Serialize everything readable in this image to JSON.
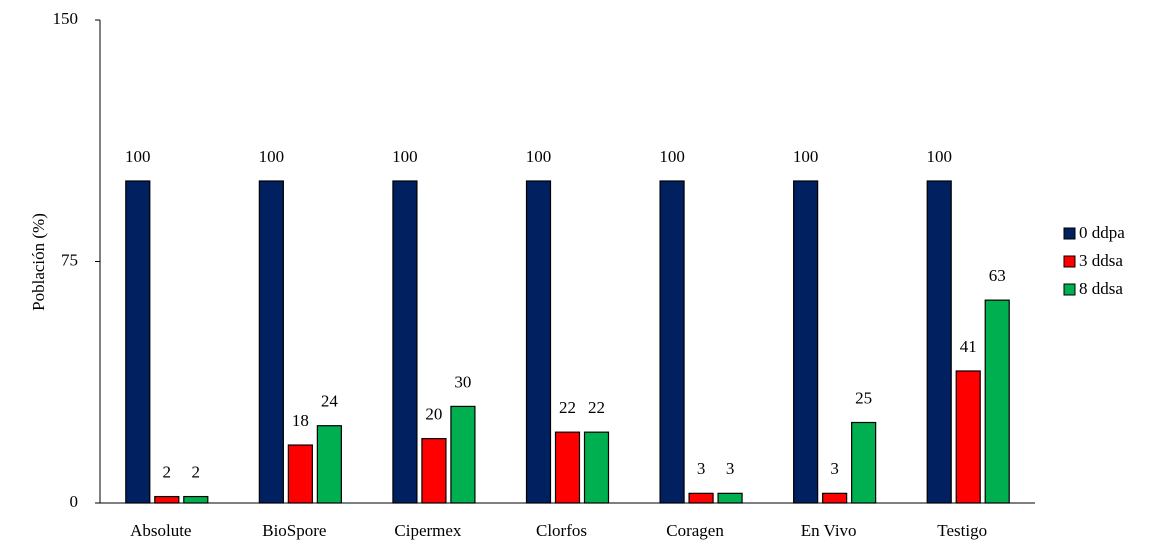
{
  "chart_data": {
    "type": "bar",
    "y_label": "Población (%)",
    "categories": [
      "Absolute",
      "BioSpore",
      "Cipermex",
      "Clorfos",
      "Coragen",
      "En Vivo",
      "Testigo"
    ],
    "series": [
      {
        "name": "0 ddpa",
        "color": "#002060",
        "values": [
          100,
          100,
          100,
          100,
          100,
          100,
          100
        ]
      },
      {
        "name": "3 ddsa",
        "color": "#ff0000",
        "values": [
          2,
          18,
          20,
          22,
          3,
          3,
          41
        ]
      },
      {
        "name": "8 ddsa",
        "color": "#00b050",
        "values": [
          2,
          24,
          30,
          22,
          3,
          25,
          63
        ]
      }
    ],
    "ylim": [
      0,
      150
    ],
    "yticks": [
      0,
      75,
      150
    ],
    "grid": false,
    "legend": "right",
    "data_labels": true
  }
}
